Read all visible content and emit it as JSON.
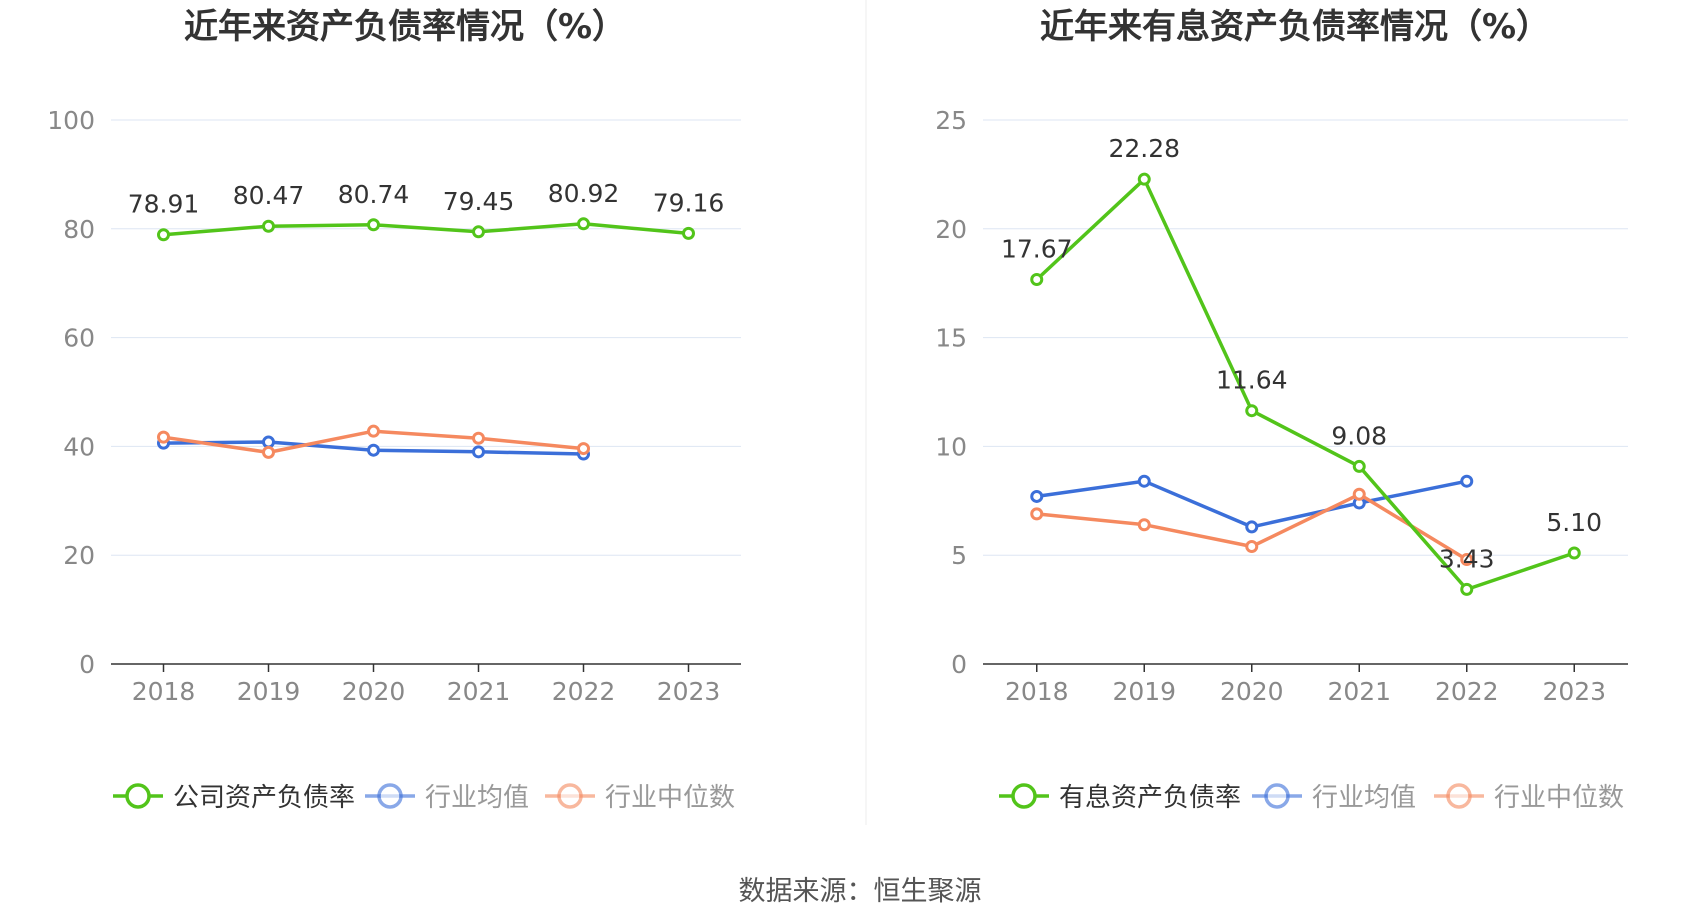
{
  "source_text": "数据来源：恒生聚源",
  "colors": {
    "company": "#52c41a",
    "average": "#3b6fd9",
    "median": "#f5895f",
    "grid": "#dde6f3",
    "axis": "#333333",
    "tick": "#888888",
    "title": "#333333",
    "divider": "#eeeeee"
  },
  "chart_data": [
    {
      "type": "line",
      "title": "近年来资产负债率情况（%）",
      "x": [
        "2018",
        "2019",
        "2020",
        "2021",
        "2022",
        "2023"
      ],
      "ylim": [
        0,
        100
      ],
      "yticks": [
        0,
        20,
        40,
        60,
        80,
        100
      ],
      "grid": true,
      "legend_position": "bottom",
      "series": [
        {
          "name": "公司资产负债率",
          "color_key": "company",
          "labeled": true,
          "values": [
            78.91,
            80.47,
            80.74,
            79.45,
            80.92,
            79.16
          ],
          "labels": [
            "78.91",
            "80.47",
            "80.74",
            "79.45",
            "80.92",
            "79.16"
          ]
        },
        {
          "name": "行业均值",
          "color_key": "average",
          "labeled": false,
          "values": [
            40.6,
            40.8,
            39.3,
            39.0,
            38.6,
            null
          ]
        },
        {
          "name": "行业中位数",
          "color_key": "median",
          "labeled": false,
          "values": [
            41.7,
            38.9,
            42.8,
            41.5,
            39.6,
            null
          ]
        }
      ]
    },
    {
      "type": "line",
      "title": "近年来有息资产负债率情况（%）",
      "x": [
        "2018",
        "2019",
        "2020",
        "2021",
        "2022",
        "2023"
      ],
      "ylim": [
        0,
        25
      ],
      "yticks": [
        0,
        5,
        10,
        15,
        20,
        25
      ],
      "grid": true,
      "legend_position": "bottom",
      "series": [
        {
          "name": "有息资产负债率",
          "color_key": "company",
          "labeled": true,
          "values": [
            17.67,
            22.28,
            11.64,
            9.08,
            3.43,
            5.1
          ],
          "labels": [
            "17.67",
            "22.28",
            "11.64",
            "9.08",
            "3.43",
            "5.10"
          ]
        },
        {
          "name": "行业均值",
          "color_key": "average",
          "labeled": false,
          "values": [
            7.7,
            8.4,
            6.3,
            7.4,
            8.4,
            null
          ]
        },
        {
          "name": "行业中位数",
          "color_key": "median",
          "labeled": false,
          "values": [
            6.9,
            6.4,
            5.4,
            7.8,
            4.8,
            null
          ]
        }
      ]
    }
  ]
}
